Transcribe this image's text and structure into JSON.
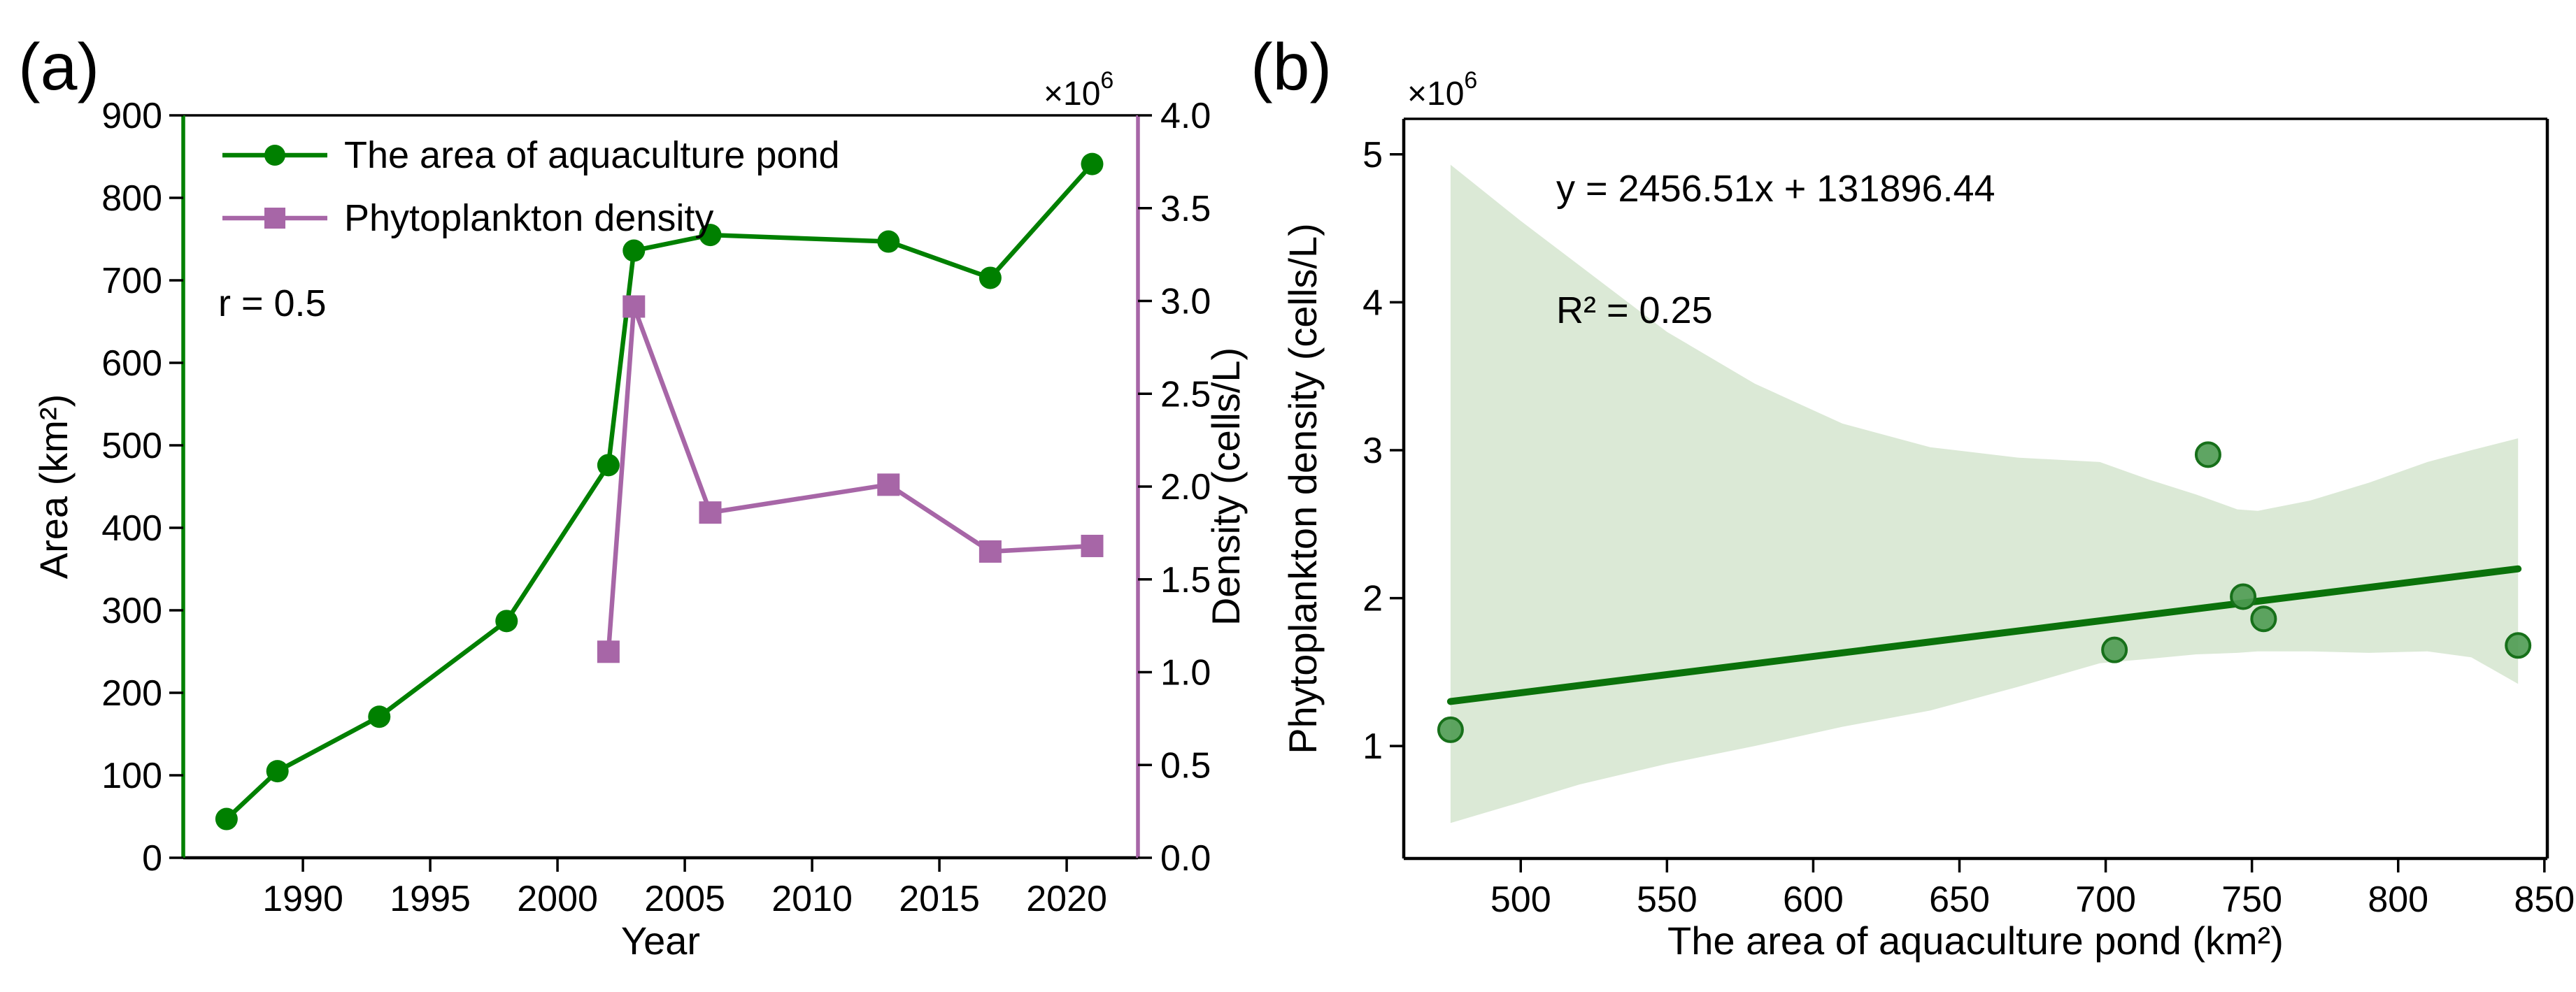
{
  "colors": {
    "green_line": "#008000",
    "purple_line": "#a766a7",
    "black": "#000000",
    "band_fill": "#dbe9d6",
    "scatter_fill": "#4e9b52",
    "scatter_edge": "#17701a",
    "regression_line": "#0b720b"
  },
  "chart_data": [
    {
      "id": "a",
      "type": "line",
      "panel_label": "(a)",
      "xlabel": "Year",
      "ylabel_left": "Area (km²)",
      "ylabel_right": "Density (cells/L)",
      "offset_base": "×10",
      "offset_exp": "6",
      "annotation": "r = 0.5",
      "legend": [
        "The area of aquaculture pond",
        "Phytoplankton density"
      ],
      "xlim": [
        1985.3,
        2022.8
      ],
      "ylim_left": [
        0,
        900
      ],
      "ylim_right": [
        0.0,
        4.0
      ],
      "x_tick_labels": [
        "1990",
        "1995",
        "2000",
        "2005",
        "2010",
        "2015",
        "2020"
      ],
      "y_tick_labels_left": [
        "0",
        "100",
        "200",
        "300",
        "400",
        "500",
        "600",
        "700",
        "800",
        "900"
      ],
      "y_tick_labels_right": [
        "0.0",
        "0.5",
        "1.0",
        "1.5",
        "2.0",
        "2.5",
        "3.0",
        "3.5",
        "4.0"
      ],
      "grid": false,
      "legend_position": "upper left",
      "series": [
        {
          "name": "The area of aquaculture pond",
          "axis": "left",
          "marker": "circle",
          "x": [
            1987,
            1989,
            1993,
            1998,
            2002,
            2003,
            2006,
            2013,
            2017,
            2021
          ],
          "y": [
            47,
            105,
            171,
            287,
            476,
            736,
            755,
            747,
            703,
            841
          ]
        },
        {
          "name": "Phytoplankton density",
          "axis": "right",
          "marker": "square",
          "x": [
            2002,
            2003,
            2006,
            2013,
            2017,
            2021
          ],
          "y": [
            1.11,
            2.97,
            1.86,
            2.01,
            1.65,
            1.68
          ]
        }
      ]
    },
    {
      "id": "b",
      "type": "scatter",
      "panel_label": "(b)",
      "xlabel": "The area of aquaculture pond (km²)",
      "ylabel": "Phytoplankton density (cells/L)",
      "offset_base": "×10",
      "offset_exp": "6",
      "annotation_line1": "y = 2456.51x + 131896.44",
      "annotation_line2": "R² = 0.25",
      "xlim": [
        460,
        851
      ],
      "ylim": [
        0.24,
        5.24
      ],
      "x_tick_labels": [
        "500",
        "550",
        "600",
        "650",
        "700",
        "750",
        "800",
        "850"
      ],
      "y_tick_labels": [
        "1",
        "2",
        "3",
        "4",
        "5"
      ],
      "grid": false,
      "points": [
        [
          476,
          1.11
        ],
        [
          703,
          1.65
        ],
        [
          735,
          2.97
        ],
        [
          747,
          2.01
        ],
        [
          754,
          1.86
        ],
        [
          841,
          1.68
        ]
      ],
      "regression": {
        "slope": 2456.51,
        "intercept": 131896.44,
        "x_start": 476,
        "x_end": 841
      },
      "ci_band": {
        "x": [
          476,
          500,
          520,
          550,
          580,
          610,
          640,
          670,
          698,
          715,
          731,
          745,
          752,
          770,
          790,
          810,
          825,
          841
        ],
        "upper": [
          4.93,
          4.55,
          4.25,
          3.8,
          3.45,
          3.18,
          3.02,
          2.95,
          2.92,
          2.8,
          2.7,
          2.6,
          2.59,
          2.66,
          2.78,
          2.92,
          3.0,
          3.08
        ],
        "lower": [
          0.48,
          0.62,
          0.74,
          0.88,
          1.0,
          1.13,
          1.24,
          1.4,
          1.56,
          1.59,
          1.62,
          1.63,
          1.64,
          1.64,
          1.63,
          1.64,
          1.6,
          1.42
        ]
      }
    }
  ]
}
